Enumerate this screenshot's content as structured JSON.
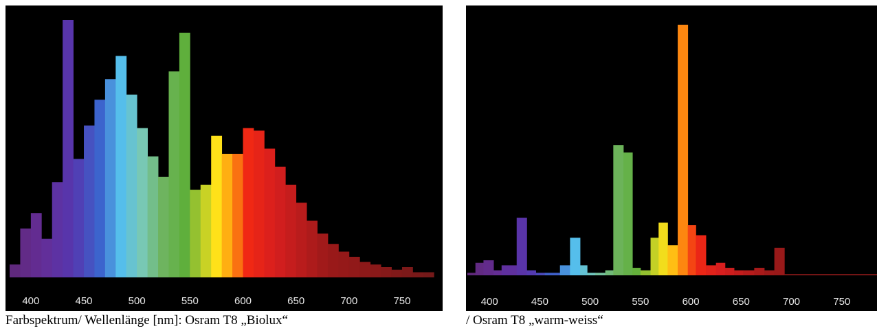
{
  "captions": {
    "left": "Farbspektrum/ Wellenlänge [nm]: Osram T8 „Biolux“",
    "right": "/ Osram T8 „warm-weiss“"
  },
  "chart_data": [
    {
      "type": "bar",
      "title": "",
      "xlabel": "",
      "ylabel": "",
      "xlim": [
        380,
        785
      ],
      "ylim": [
        0,
        100
      ],
      "x_ticks": [
        400,
        450,
        500,
        550,
        600,
        650,
        700,
        750
      ],
      "grid": false,
      "bin_width": 10,
      "bars": [
        {
          "x": 380,
          "value": 5
        },
        {
          "x": 390,
          "value": 19
        },
        {
          "x": 400,
          "value": 25
        },
        {
          "x": 410,
          "value": 15
        },
        {
          "x": 420,
          "value": 37
        },
        {
          "x": 430,
          "value": 100
        },
        {
          "x": 440,
          "value": 46
        },
        {
          "x": 450,
          "value": 59
        },
        {
          "x": 460,
          "value": 69
        },
        {
          "x": 470,
          "value": 77
        },
        {
          "x": 480,
          "value": 86
        },
        {
          "x": 490,
          "value": 71
        },
        {
          "x": 500,
          "value": 58
        },
        {
          "x": 510,
          "value": 47
        },
        {
          "x": 520,
          "value": 39
        },
        {
          "x": 530,
          "value": 80
        },
        {
          "x": 540,
          "value": 95
        },
        {
          "x": 550,
          "value": 34
        },
        {
          "x": 560,
          "value": 36
        },
        {
          "x": 570,
          "value": 55
        },
        {
          "x": 580,
          "value": 48
        },
        {
          "x": 590,
          "value": 48
        },
        {
          "x": 600,
          "value": 58
        },
        {
          "x": 610,
          "value": 57
        },
        {
          "x": 620,
          "value": 50
        },
        {
          "x": 630,
          "value": 43
        },
        {
          "x": 640,
          "value": 36
        },
        {
          "x": 650,
          "value": 29
        },
        {
          "x": 660,
          "value": 22
        },
        {
          "x": 670,
          "value": 17
        },
        {
          "x": 680,
          "value": 13
        },
        {
          "x": 690,
          "value": 10
        },
        {
          "x": 700,
          "value": 8
        },
        {
          "x": 710,
          "value": 6
        },
        {
          "x": 720,
          "value": 5
        },
        {
          "x": 730,
          "value": 4
        },
        {
          "x": 740,
          "value": 3
        },
        {
          "x": 750,
          "value": 4
        },
        {
          "x": 760,
          "value": 2
        },
        {
          "x": 770,
          "value": 2
        }
      ]
    },
    {
      "type": "bar",
      "title": "",
      "xlabel": "",
      "ylabel": "",
      "xlim": [
        378,
        785
      ],
      "ylim": [
        0,
        100
      ],
      "x_ticks": [
        400,
        450,
        500,
        550,
        600,
        650,
        700,
        750
      ],
      "grid": false,
      "bins": [
        [
          378,
          386,
          1
        ],
        [
          386,
          394,
          5
        ],
        [
          394,
          404,
          6
        ],
        [
          404,
          412,
          2
        ],
        [
          412,
          427,
          4
        ],
        [
          427,
          437,
          23
        ],
        [
          437,
          446,
          2
        ],
        [
          446,
          455,
          1
        ],
        [
          455,
          470,
          1
        ],
        [
          470,
          480,
          4
        ],
        [
          480,
          490,
          15
        ],
        [
          490,
          497,
          4
        ],
        [
          497,
          505,
          1
        ],
        [
          505,
          515,
          1
        ],
        [
          515,
          523,
          2
        ],
        [
          523,
          533,
          52
        ],
        [
          533,
          542,
          49
        ],
        [
          542,
          550,
          3
        ],
        [
          550,
          560,
          2
        ],
        [
          560,
          568,
          15
        ],
        [
          568,
          577,
          21
        ],
        [
          577,
          587,
          12
        ],
        [
          587,
          597,
          100
        ],
        [
          597,
          605,
          20
        ],
        [
          605,
          615,
          16
        ],
        [
          615,
          625,
          4
        ],
        [
          625,
          634,
          5
        ],
        [
          634,
          643,
          3
        ],
        [
          643,
          652,
          2
        ],
        [
          652,
          663,
          2
        ],
        [
          663,
          673,
          3
        ],
        [
          673,
          683,
          2
        ],
        [
          683,
          693,
          11
        ],
        [
          693,
          785,
          0.5
        ]
      ]
    }
  ]
}
